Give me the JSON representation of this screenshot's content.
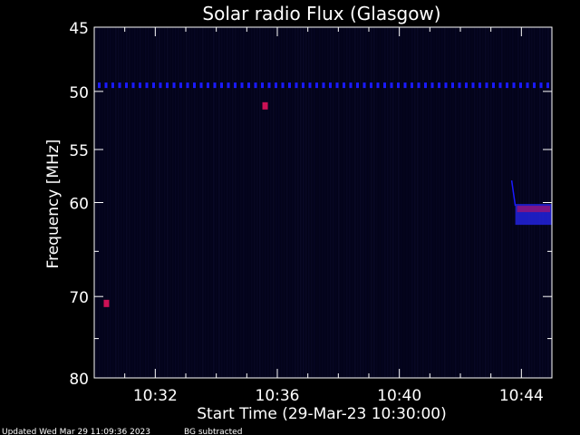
{
  "chart_data": {
    "type": "heatmap",
    "title": "Solar radio Flux (Glasgow)",
    "ylabel": "Frequency [MHz]",
    "xlabel": "Start Time (29-Mar-23 10:30:00)",
    "y_axis": {
      "range": [
        45,
        80
      ],
      "ticks": [
        45,
        50,
        55,
        60,
        70,
        80
      ],
      "minor": [
        65,
        75
      ],
      "inverted": true
    },
    "x_axis": {
      "range_minutes": [
        0,
        15
      ],
      "ticks": [
        "10:32",
        "10:36",
        "10:40",
        "10:44"
      ],
      "tick_minutes": [
        2,
        6,
        10,
        14
      ]
    },
    "colors": {
      "background": "#000000",
      "plot_fill": "#03031a",
      "interference": "#1a1aff",
      "burst": "#2222dd",
      "hot": "#cc1155"
    },
    "features": [
      {
        "name": "interference-line",
        "freq_mhz": 49.5,
        "minute_start": 0,
        "minute_end": 15
      },
      {
        "name": "burst",
        "freq_mhz": [
          60.5,
          61.5
        ],
        "minute_start": 13.8,
        "minute_end": 15
      },
      {
        "name": "spot",
        "freq_mhz": 70.8,
        "minute": 0.4
      },
      {
        "name": "spot",
        "freq_mhz": 51.2,
        "minute": 5.6
      }
    ]
  },
  "footer": {
    "updated": "Updated Wed Mar 29 11:09:36 2023",
    "note": "BG subtracted"
  }
}
